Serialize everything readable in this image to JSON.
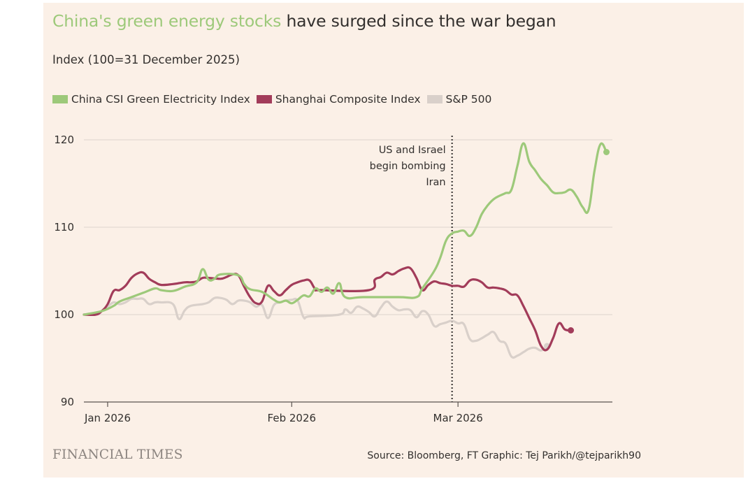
{
  "header": {
    "title_highlight": "China's green energy stocks",
    "title_rest": " have surged since the war began",
    "subtitle": "Index (100=31 December 2025)"
  },
  "footer": {
    "logo": "FINANCIAL TIMES",
    "source": "Source: Bloomberg, FT Graphic: Tej Parikh/@tejparikh90"
  },
  "colors": {
    "green": "#9dc97a",
    "maroon": "#a23c5a",
    "grey": "#d9d0ca",
    "background": "#fbf0e7",
    "grid": "#e3d9d1"
  },
  "chart_data": {
    "type": "line",
    "title": "China's green energy stocks have surged since the war began",
    "subtitle": "Index (100=31 December 2025)",
    "xlabel": "",
    "ylabel": "",
    "x_range": [
      -3,
      86
    ],
    "ylim": [
      90,
      120
    ],
    "y_ticks": [
      90,
      100,
      110,
      120
    ],
    "x_ticks": [
      {
        "day": 1,
        "label": "Jan 2026"
      },
      {
        "day": 32,
        "label": "Feb 2026"
      },
      {
        "day": 60,
        "label": "Mar 2026"
      }
    ],
    "grid": true,
    "legend_position": "top-left",
    "annotations": [
      {
        "day": 59,
        "lines": [
          "US and Israel",
          "begin bombing",
          "Iran"
        ]
      }
    ],
    "series": [
      {
        "name": "China CSI Green Electricity Index",
        "color": "#9dc97a",
        "points": [
          [
            -3,
            100
          ],
          [
            0,
            100.4
          ],
          [
            2,
            101
          ],
          [
            3,
            101.5
          ],
          [
            5,
            102
          ],
          [
            7,
            102.5
          ],
          [
            9,
            103
          ],
          [
            10,
            102.8
          ],
          [
            12,
            102.7
          ],
          [
            14,
            103.2
          ],
          [
            16,
            103.7
          ],
          [
            17,
            105.2
          ],
          [
            18,
            104
          ],
          [
            19,
            104.1
          ],
          [
            20,
            104.6
          ],
          [
            23,
            104.5
          ],
          [
            24,
            103.5
          ],
          [
            25,
            102.9
          ],
          [
            27,
            102.6
          ],
          [
            29,
            101.7
          ],
          [
            30,
            101.4
          ],
          [
            31,
            101.6
          ],
          [
            32,
            101.3
          ],
          [
            33,
            101.7
          ],
          [
            34,
            102.2
          ],
          [
            35,
            102.1
          ],
          [
            36,
            103
          ],
          [
            37,
            102.6
          ],
          [
            38,
            103.1
          ],
          [
            39,
            102.4
          ],
          [
            40,
            103.6
          ],
          [
            41,
            102
          ],
          [
            44,
            102
          ],
          [
            50,
            102
          ],
          [
            53,
            102
          ],
          [
            54,
            103
          ],
          [
            56,
            105
          ],
          [
            57,
            106.5
          ],
          [
            58,
            108.5
          ],
          [
            59,
            109.3
          ],
          [
            60,
            109.5
          ],
          [
            61,
            109.6
          ],
          [
            62,
            109
          ],
          [
            63,
            109.9
          ],
          [
            64,
            111.5
          ],
          [
            65,
            112.5
          ],
          [
            66,
            113.2
          ],
          [
            67,
            113.6
          ],
          [
            68,
            113.9
          ],
          [
            69,
            114.3
          ],
          [
            70,
            117
          ],
          [
            71,
            119.6
          ],
          [
            72,
            117.5
          ],
          [
            73,
            116.5
          ],
          [
            74,
            115.5
          ],
          [
            75,
            114.8
          ],
          [
            76,
            114
          ],
          [
            77,
            113.9
          ],
          [
            78,
            114
          ],
          [
            79,
            114.3
          ],
          [
            80,
            113.5
          ],
          [
            81,
            112.3
          ],
          [
            82,
            112
          ],
          [
            83,
            116.5
          ],
          [
            84,
            119.5
          ],
          [
            85,
            118.6
          ]
        ]
      },
      {
        "name": "Shanghai Composite Index",
        "color": "#a23c5a",
        "points": [
          [
            -3,
            100
          ],
          [
            -1,
            100
          ],
          [
            0,
            100.4
          ],
          [
            1,
            101.2
          ],
          [
            2,
            102.7
          ],
          [
            3,
            102.8
          ],
          [
            4,
            103.3
          ],
          [
            5,
            104.2
          ],
          [
            6,
            104.7
          ],
          [
            7,
            104.8
          ],
          [
            8,
            104.1
          ],
          [
            9,
            103.7
          ],
          [
            10,
            103.4
          ],
          [
            12,
            103.5
          ],
          [
            14,
            103.7
          ],
          [
            15,
            103.7
          ],
          [
            16,
            103.8
          ],
          [
            17,
            104.2
          ],
          [
            18,
            104.2
          ],
          [
            20,
            104.1
          ],
          [
            21,
            104.3
          ],
          [
            22,
            104.6
          ],
          [
            23,
            104.5
          ],
          [
            24,
            103.2
          ],
          [
            25,
            102
          ],
          [
            26,
            101.3
          ],
          [
            27,
            101.5
          ],
          [
            28,
            103.3
          ],
          [
            29,
            102.7
          ],
          [
            30,
            102.2
          ],
          [
            31,
            102.8
          ],
          [
            32,
            103.4
          ],
          [
            33,
            103.7
          ],
          [
            34,
            103.9
          ],
          [
            35,
            103.9
          ],
          [
            36,
            102.9
          ],
          [
            37,
            102.8
          ],
          [
            45,
            102.8
          ],
          [
            46,
            104
          ],
          [
            47,
            104.3
          ],
          [
            48,
            104.8
          ],
          [
            49,
            104.6
          ],
          [
            50,
            105
          ],
          [
            51,
            105.3
          ],
          [
            52,
            105.3
          ],
          [
            53,
            104.2
          ],
          [
            54,
            102.8
          ],
          [
            55,
            103.4
          ],
          [
            56,
            103.8
          ],
          [
            57,
            103.6
          ],
          [
            58,
            103.5
          ],
          [
            59,
            103.3
          ],
          [
            60,
            103.3
          ],
          [
            61,
            103.2
          ],
          [
            62,
            103.9
          ],
          [
            63,
            104
          ],
          [
            64,
            103.7
          ],
          [
            65,
            103.1
          ],
          [
            66,
            103.1
          ],
          [
            67,
            103
          ],
          [
            68,
            102.8
          ],
          [
            69,
            102.3
          ],
          [
            70,
            102.2
          ],
          [
            71,
            101
          ],
          [
            72,
            99.6
          ],
          [
            73,
            98.2
          ],
          [
            74,
            96.4
          ],
          [
            75,
            96
          ],
          [
            76,
            97.3
          ],
          [
            77,
            99
          ],
          [
            78,
            98.3
          ],
          [
            79,
            98.2
          ]
        ]
      },
      {
        "name": "S&P 500",
        "color": "#d9d0ca",
        "points": [
          [
            -3,
            100
          ],
          [
            0,
            100.4
          ],
          [
            1,
            100.9
          ],
          [
            2,
            101.4
          ],
          [
            3,
            101.2
          ],
          [
            4,
            101.4
          ],
          [
            5,
            101.8
          ],
          [
            6,
            101.8
          ],
          [
            7,
            101.8
          ],
          [
            8,
            101.2
          ],
          [
            9,
            101.4
          ],
          [
            10,
            101.4
          ],
          [
            12,
            101.2
          ],
          [
            13,
            99.5
          ],
          [
            14,
            100.5
          ],
          [
            15,
            101
          ],
          [
            17,
            101.2
          ],
          [
            18,
            101.4
          ],
          [
            19,
            101.9
          ],
          [
            20,
            101.9
          ],
          [
            21,
            101.7
          ],
          [
            22,
            101.2
          ],
          [
            23,
            101.6
          ],
          [
            24,
            101.6
          ],
          [
            25,
            101.4
          ],
          [
            26,
            100.9
          ],
          [
            27,
            101.1
          ],
          [
            28,
            99.6
          ],
          [
            29,
            101.1
          ],
          [
            30,
            101.4
          ],
          [
            31,
            101.6
          ],
          [
            32,
            101.7
          ],
          [
            33,
            101.6
          ],
          [
            34,
            99.7
          ],
          [
            35,
            99.8
          ],
          [
            40,
            100
          ],
          [
            41,
            100.6
          ],
          [
            42,
            100.2
          ],
          [
            43,
            100.9
          ],
          [
            44,
            100.7
          ],
          [
            45,
            100.3
          ],
          [
            46,
            99.8
          ],
          [
            47,
            100.8
          ],
          [
            48,
            101.5
          ],
          [
            49,
            100.9
          ],
          [
            50,
            100.5
          ],
          [
            51,
            100.6
          ],
          [
            52,
            100.5
          ],
          [
            53,
            99.7
          ],
          [
            54,
            100.4
          ],
          [
            55,
            100
          ],
          [
            56,
            98.7
          ],
          [
            57,
            98.9
          ],
          [
            58,
            99.1
          ],
          [
            59,
            99.3
          ],
          [
            60,
            99
          ],
          [
            61,
            98.9
          ],
          [
            62,
            97.2
          ],
          [
            63,
            97
          ],
          [
            64,
            97.3
          ],
          [
            65,
            97.7
          ],
          [
            66,
            98
          ],
          [
            67,
            97
          ],
          [
            68,
            96.7
          ],
          [
            69,
            95.2
          ],
          [
            70,
            95.3
          ],
          [
            71,
            95.7
          ],
          [
            72,
            96.1
          ],
          [
            73,
            96.2
          ],
          [
            74,
            95.9
          ],
          [
            75,
            96.4
          ]
        ]
      }
    ]
  }
}
